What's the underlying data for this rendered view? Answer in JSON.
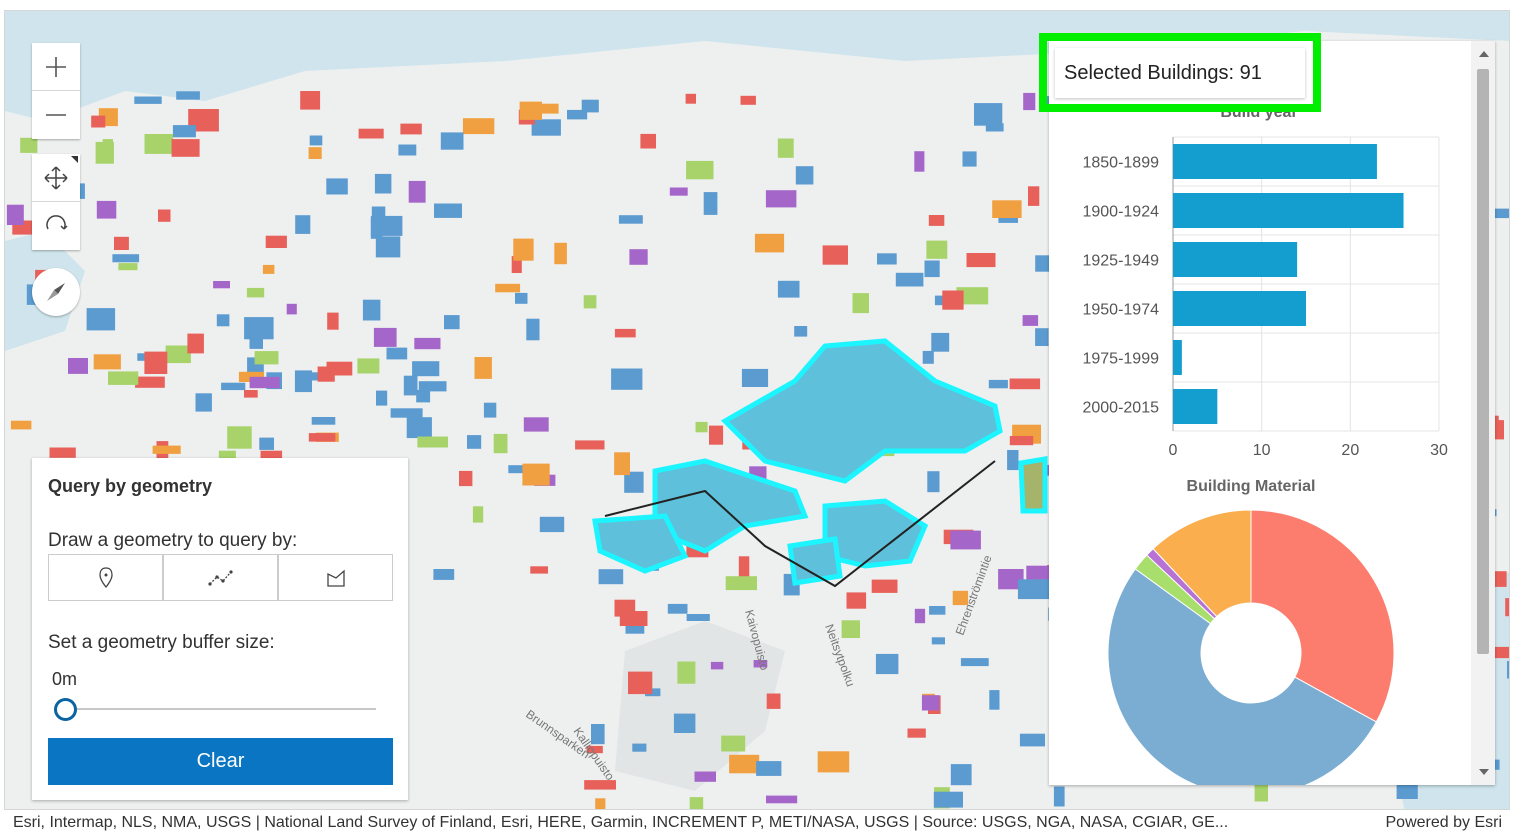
{
  "map": {
    "attribution": "Esri, Intermap, NLS, NMA, USGS | National Land Survey of Finland, Esri, HERE, Garmin, INCREMENT P, METI/NASA, USGS | Source: USGS, NGA, NASA, CGIAR, GE...",
    "powered_by": "Powered by Esri",
    "street_labels": [
      "Ehrenströmintie",
      "Kalliopuisto",
      "Brunnsparken",
      "Neitsytpolku",
      "Kaivopuisto"
    ],
    "colors": {
      "water": "#cfe4ec",
      "ground": "#eef0f0",
      "selection": "#1cf5ff"
    }
  },
  "widgets": {
    "zoom_in": "plus-icon",
    "zoom_out": "minus-icon",
    "pan": "pan-arrows-icon",
    "rotate": "rotate-icon",
    "compass": "compass-icon"
  },
  "query_panel": {
    "title": "Query by geometry",
    "draw_label": "Draw a geometry to query by:",
    "tools": [
      {
        "name": "point-tool",
        "icon": "pin-icon"
      },
      {
        "name": "polyline-tool",
        "icon": "polyline-icon"
      },
      {
        "name": "polygon-tool",
        "icon": "polygon-icon"
      }
    ],
    "buffer_label": "Set a geometry buffer size:",
    "buffer_value": "0m",
    "buffer_fraction": 0.0,
    "clear_label": "Clear"
  },
  "stats": {
    "selected_label": "Selected Buildings: 91"
  },
  "chart_data": [
    {
      "type": "bar",
      "orientation": "horizontal",
      "title": "Build year",
      "categories": [
        "1850-1899",
        "1900-1924",
        "1925-1949",
        "1950-1974",
        "1975-1999",
        "2000-2015"
      ],
      "values": [
        23,
        26,
        14,
        15,
        1,
        5
      ],
      "xlim": [
        0,
        30
      ],
      "xticks": [
        "0",
        "10",
        "20",
        "30"
      ],
      "grid": true,
      "color": "#149dcf"
    },
    {
      "type": "pie",
      "title": "Building Material",
      "donut": true,
      "slices": [
        {
          "value": 33,
          "color": "#fc7d6e"
        },
        {
          "value": 52,
          "color": "#7badd3"
        },
        {
          "value": 2,
          "color": "#a8de6c"
        },
        {
          "value": 1,
          "color": "#b772d4"
        },
        {
          "value": 12,
          "color": "#fbae4e"
        }
      ]
    }
  ]
}
